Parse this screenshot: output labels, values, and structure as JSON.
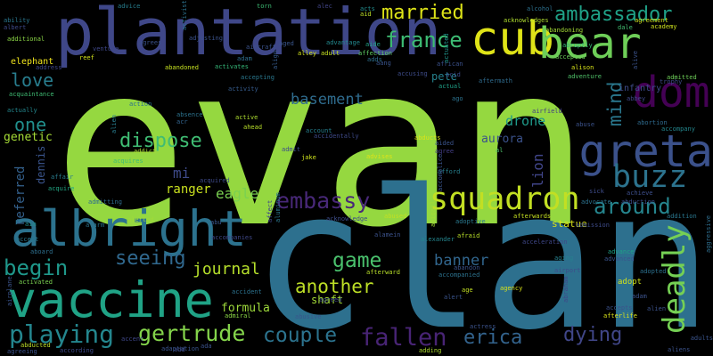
{
  "background": "#000000",
  "words": [
    {
      "text": "evan",
      "color": "#95d840"
    },
    {
      "text": "clan",
      "color": "#2d708e"
    },
    {
      "text": "plantation",
      "color": "#3f4788"
    },
    {
      "text": "cub",
      "color": "#dfe318"
    },
    {
      "text": "bear",
      "color": "#6ece58"
    },
    {
      "text": "dom",
      "color": "#440154"
    },
    {
      "text": "greta",
      "color": "#3b518b"
    },
    {
      "text": "albright",
      "color": "#2c728e"
    },
    {
      "text": "vaccine",
      "color": "#20a386"
    },
    {
      "text": "squadron",
      "color": "#c2df23"
    },
    {
      "text": "deadly",
      "color": "#75d054"
    },
    {
      "text": "buzz",
      "color": "#2c738e"
    },
    {
      "text": "married",
      "color": "#dde318"
    },
    {
      "text": "ambassador",
      "color": "#1fa187"
    },
    {
      "text": "france",
      "color": "#3dbc74"
    },
    {
      "text": "embassy",
      "color": "#482878"
    },
    {
      "text": "around",
      "color": "#25858e"
    },
    {
      "text": "playing",
      "color": "#24868e"
    },
    {
      "text": "gertrude",
      "color": "#84d44b"
    },
    {
      "text": "fallen",
      "color": "#482475"
    },
    {
      "text": "couple",
      "color": "#2c738e"
    },
    {
      "text": "dispose",
      "color": "#3fbc73"
    },
    {
      "text": "seeing",
      "color": "#30688e"
    },
    {
      "text": "begin",
      "color": "#1f988b"
    },
    {
      "text": "game",
      "color": "#4ac16d"
    },
    {
      "text": "another",
      "color": "#bddf26"
    },
    {
      "text": "love",
      "color": "#287d8e"
    },
    {
      "text": "one",
      "color": "#21908d"
    },
    {
      "text": "mind",
      "color": "#2a788e"
    },
    {
      "text": "erica",
      "color": "#33638d"
    },
    {
      "text": "dying",
      "color": "#404688"
    },
    {
      "text": "basement",
      "color": "#2f6c8e"
    },
    {
      "text": "eagle",
      "color": "#7ad151"
    },
    {
      "text": "ranger",
      "color": "#cae11f"
    },
    {
      "text": "journal",
      "color": "#b5de2b"
    },
    {
      "text": "banner",
      "color": "#31668e"
    },
    {
      "text": "formula",
      "color": "#9dd93b"
    },
    {
      "text": "drone",
      "color": "#1f9a8a"
    },
    {
      "text": "aurora",
      "color": "#3b528b"
    },
    {
      "text": "lion",
      "color": "#404588"
    },
    {
      "text": "mi",
      "color": "#3e4a89"
    },
    {
      "text": "pete",
      "color": "#26828e"
    },
    {
      "text": "genetic",
      "color": "#a5db36"
    },
    {
      "text": "dennis",
      "color": "#3a548c"
    },
    {
      "text": "referred",
      "color": "#34618d"
    },
    {
      "text": "shaft",
      "color": "#a2da37"
    },
    {
      "text": "statue",
      "color": "#dae319"
    },
    {
      "text": "infantry",
      "color": "#3e4c8a"
    },
    {
      "text": "adopt",
      "color": "#d0e11c"
    },
    {
      "text": "elephant",
      "color": "#f1e51d"
    },
    {
      "text": "alcohol",
      "color": "#2d718e"
    },
    {
      "text": "academy",
      "color": "#cde11d"
    },
    {
      "text": "abruptly",
      "color": "#35b779"
    },
    {
      "text": "accepted",
      "color": "#6ccd5a"
    },
    {
      "text": "alison",
      "color": "#d8e219"
    },
    {
      "text": "adventure",
      "color": "#50c46a"
    },
    {
      "text": "admitted",
      "color": "#6ece58"
    },
    {
      "text": "trophy",
      "color": "#3e4989"
    },
    {
      "text": "aircraft",
      "color": "#3b528b"
    },
    {
      "text": "adam",
      "color": "#2e6e8e"
    },
    {
      "text": "activates",
      "color": "#35b779"
    },
    {
      "text": "accepting",
      "color": "#2a788e"
    },
    {
      "text": "activity",
      "color": "#365c8d"
    },
    {
      "text": "action",
      "color": "#2c728e"
    },
    {
      "text": "absence",
      "color": "#2c738e"
    },
    {
      "text": "acr",
      "color": "#32648e"
    },
    {
      "text": "active",
      "color": "#addc30"
    },
    {
      "text": "ahead",
      "color": "#b8de29"
    },
    {
      "text": "account",
      "color": "#277f8e"
    },
    {
      "text": "accidentally",
      "color": "#3e4a89"
    },
    {
      "text": "abducts",
      "color": "#dae319"
    },
    {
      "text": "aided",
      "color": "#3a538b"
    },
    {
      "text": "agree",
      "color": "#433e85"
    },
    {
      "text": "advises",
      "color": "#dde318"
    },
    {
      "text": "afford",
      "color": "#27808e"
    },
    {
      "text": "airfield",
      "color": "#433e85"
    },
    {
      "text": "abuse",
      "color": "#3b528b"
    },
    {
      "text": "abortion",
      "color": "#2f6b8e"
    },
    {
      "text": "accompany",
      "color": "#24878e"
    },
    {
      "text": "alien",
      "color": "#287c8e"
    },
    {
      "text": "addict",
      "color": "#a8db34"
    },
    {
      "text": "admit",
      "color": "#3e4c8a"
    },
    {
      "text": "jake",
      "color": "#cde11d"
    },
    {
      "text": "al",
      "color": "#4ec36b"
    },
    {
      "text": "advice",
      "color": "#277e8e"
    },
    {
      "text": "torn",
      "color": "#3dbc74"
    },
    {
      "text": "alec",
      "color": "#414487"
    },
    {
      "text": "aid",
      "color": "#bddf26"
    },
    {
      "text": "acknowledges",
      "color": "#b0dd2f"
    },
    {
      "text": "abandoning",
      "color": "#a5db36"
    },
    {
      "text": "dale",
      "color": "#42be71"
    },
    {
      "text": "agreement",
      "color": "#cde11d"
    },
    {
      "text": "acts",
      "color": "#228c8d"
    },
    {
      "text": "ability",
      "color": "#2a768e"
    },
    {
      "text": "albert",
      "color": "#3e4989"
    },
    {
      "text": "additional",
      "color": "#8bd646"
    },
    {
      "text": "address",
      "color": "#3f4788"
    },
    {
      "text": "acquaintance",
      "color": "#3fbc73"
    },
    {
      "text": "actually",
      "color": "#24878e"
    },
    {
      "text": "agrees",
      "color": "#3b528b"
    },
    {
      "text": "aged",
      "color": "#39558c"
    },
    {
      "text": "advantage",
      "color": "#23898e"
    },
    {
      "text": "aide",
      "color": "#20a386"
    },
    {
      "text": "aang",
      "color": "#3a548c"
    },
    {
      "text": "african",
      "color": "#3b518b"
    },
    {
      "text": "acid",
      "color": "#3e4c8a"
    },
    {
      "text": "actual",
      "color": "#1fa088"
    },
    {
      "text": "aftermath",
      "color": "#2f6b8e"
    },
    {
      "text": "alive",
      "color": "#3b528b"
    },
    {
      "text": "abbey",
      "color": "#3f4889"
    },
    {
      "text": "venture",
      "color": "#3f4788"
    },
    {
      "text": "reef",
      "color": "#d2e21b"
    },
    {
      "text": "abandoned",
      "color": "#c5e021"
    },
    {
      "text": "alley",
      "color": "#d0e11c"
    },
    {
      "text": "adult",
      "color": "#c5e021"
    },
    {
      "text": "affection",
      "color": "#5ec962"
    },
    {
      "text": "adds",
      "color": "#2d708e"
    },
    {
      "text": "align",
      "color": "#375b8d"
    },
    {
      "text": "accusing",
      "color": "#3e4c8a"
    },
    {
      "text": "actuated",
      "color": "#1f958b"
    },
    {
      "text": "ago",
      "color": "#2c728e"
    },
    {
      "text": "aging",
      "color": "#26818e"
    },
    {
      "text": "advance",
      "color": "#1fa187"
    },
    {
      "text": "advanced",
      "color": "#3a548c"
    },
    {
      "text": "adopted",
      "color": "#2c718e"
    },
    {
      "text": "addition",
      "color": "#2a778e"
    },
    {
      "text": "aggressive",
      "color": "#2e6e8e"
    },
    {
      "text": "achieve",
      "color": "#3d4e8a"
    },
    {
      "text": "abduction",
      "color": "#3d4d8a"
    },
    {
      "text": "acquires",
      "color": "#3dbc74"
    },
    {
      "text": "acquire",
      "color": "#22a884"
    },
    {
      "text": "affair",
      "color": "#287c8e"
    },
    {
      "text": "admitting",
      "color": "#2f6b8e"
    },
    {
      "text": "alerted",
      "color": "#a0da39"
    },
    {
      "text": "alarm",
      "color": "#2b748e"
    },
    {
      "text": "aim",
      "color": "#228d8d"
    },
    {
      "text": "accept",
      "color": "#2a788e"
    },
    {
      "text": "aboard",
      "color": "#2e6f8e"
    },
    {
      "text": "activated",
      "color": "#7ad151"
    },
    {
      "text": "airplane",
      "color": "#3a538b"
    },
    {
      "text": "accompanies",
      "color": "#3f4788"
    },
    {
      "text": "abu",
      "color": "#39568c"
    },
    {
      "text": "acquired",
      "color": "#3e4a89"
    },
    {
      "text": "alamein",
      "color": "#3b528b"
    },
    {
      "text": "affect",
      "color": "#3f4889"
    },
    {
      "text": "aluminum",
      "color": "#2a788e"
    },
    {
      "text": "alexander",
      "color": "#24868e"
    },
    {
      "text": "afraid",
      "color": "#b8de29"
    },
    {
      "text": "abandon",
      "color": "#3b528b"
    },
    {
      "text": "acknowledge",
      "color": "#3d4d8a"
    },
    {
      "text": "abused",
      "color": "#c2df23"
    },
    {
      "text": "afterward",
      "color": "#b8de29"
    },
    {
      "text": "adoptive",
      "color": "#2a788e"
    },
    {
      "text": "afterwards",
      "color": "#c5e021"
    },
    {
      "text": "abigail",
      "color": "#a5db36"
    },
    {
      "text": "accomplice",
      "color": "#3a548c"
    },
    {
      "text": "agency",
      "color": "#d8e219"
    },
    {
      "text": "abusive",
      "color": "#39568c"
    },
    {
      "text": "accident",
      "color": "#2c728e"
    },
    {
      "text": "admiral",
      "color": "#8bd646"
    },
    {
      "text": "agreed",
      "color": "#3e4c8a"
    },
    {
      "text": "age",
      "color": "#c2df23"
    },
    {
      "text": "alert",
      "color": "#3a548c"
    },
    {
      "text": "accompanied",
      "color": "#2c728e"
    },
    {
      "text": "airport",
      "color": "#3e4c8a"
    },
    {
      "text": "abraham",
      "color": "#3f4788"
    },
    {
      "text": "accepts",
      "color": "#3b528b"
    },
    {
      "text": "afterlife",
      "color": "#dae319"
    },
    {
      "text": "actress",
      "color": "#3b528b"
    },
    {
      "text": "adding",
      "color": "#addc30"
    },
    {
      "text": "according",
      "color": "#3e4a89"
    },
    {
      "text": "abducted",
      "color": "#bddf26"
    },
    {
      "text": "agreeing",
      "color": "#3b528b"
    },
    {
      "text": "accent",
      "color": "#3f4788"
    },
    {
      "text": "adaptation",
      "color": "#3a548c"
    },
    {
      "text": "add",
      "color": "#3e4a89"
    },
    {
      "text": "ada",
      "color": "#3b528b"
    },
    {
      "text": "activist",
      "color": "#2c728e"
    },
    {
      "text": "adjusting",
      "color": "#3b528b"
    },
    {
      "text": "sick",
      "color": "#3e4c8a"
    },
    {
      "text": "aliens",
      "color": "#3b528b"
    },
    {
      "text": "adults",
      "color": "#3a548c"
    },
    {
      "text": "adam",
      "color": "#3b528b"
    },
    {
      "text": "advocate",
      "color": "#2c728e"
    },
    {
      "text": "admission",
      "color": "#3e4c8a"
    },
    {
      "text": "alien",
      "color": "#3b528b"
    },
    {
      "text": "acceleration",
      "color": "#3f4788"
    }
  ]
}
